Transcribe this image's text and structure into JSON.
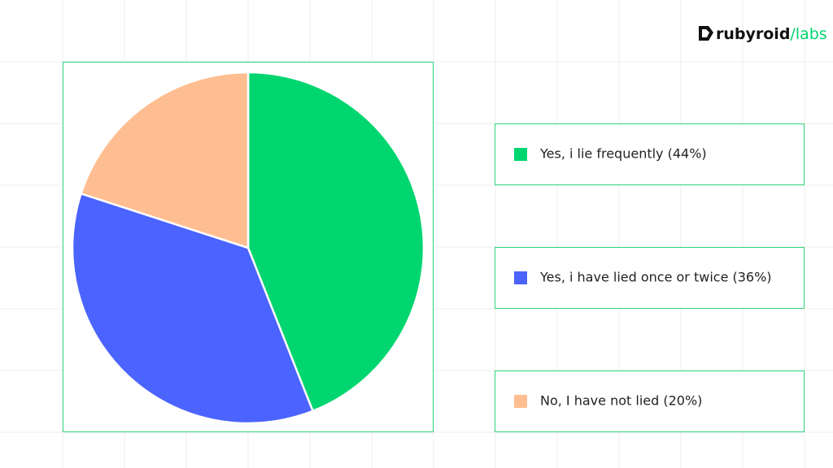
{
  "chart_data": {
    "type": "pie",
    "categories": [
      "Yes, i lie frequently (44%)",
      "Yes, i have lied once or twice (36%)",
      "No, I have not lied (20%)"
    ],
    "values": [
      44,
      36,
      20
    ],
    "colors": [
      "#00d66f",
      "#4b63ff",
      "#ffbe91"
    ]
  },
  "logo": [
    "rubyroid",
    "/",
    "labs"
  ]
}
